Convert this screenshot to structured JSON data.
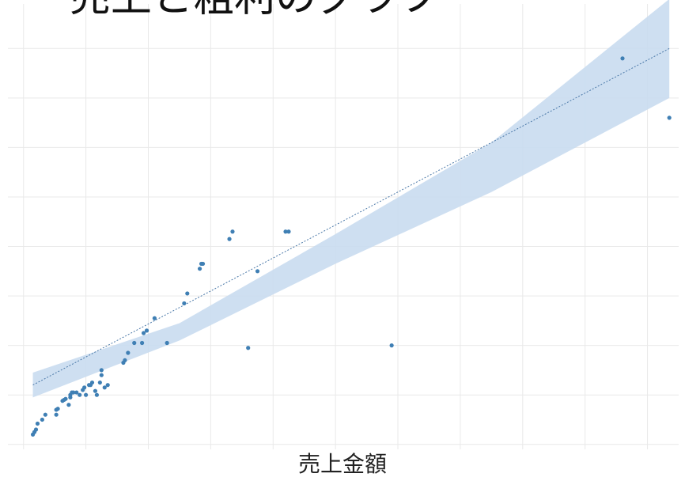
{
  "chart_data": {
    "type": "scatter",
    "title": "売上と粗利のグラフ",
    "xlabel": "売上金額",
    "ylabel": "",
    "grid": true,
    "regression": {
      "line_style": "dotted",
      "band_color": "#c9dcef",
      "line_color": "#4a78a8"
    },
    "colors": {
      "point": "#3f7fb4",
      "grid": "#e9e9e9"
    },
    "points": [
      [
        0.3,
        0.2
      ],
      [
        0.35,
        0.25
      ],
      [
        0.4,
        0.3
      ],
      [
        0.45,
        0.42
      ],
      [
        0.6,
        0.5
      ],
      [
        0.7,
        0.6
      ],
      [
        1.05,
        0.6
      ],
      [
        1.05,
        0.7
      ],
      [
        1.1,
        0.72
      ],
      [
        1.25,
        0.88
      ],
      [
        1.3,
        0.9
      ],
      [
        1.35,
        0.92
      ],
      [
        1.45,
        0.8
      ],
      [
        1.5,
        0.95
      ],
      [
        1.5,
        1.0
      ],
      [
        1.55,
        1.05
      ],
      [
        1.6,
        1.05
      ],
      [
        1.7,
        1.05
      ],
      [
        1.8,
        1.0
      ],
      [
        1.9,
        1.1
      ],
      [
        1.95,
        1.15
      ],
      [
        2.0,
        1.0
      ],
      [
        2.1,
        1.2
      ],
      [
        2.15,
        1.2
      ],
      [
        2.2,
        1.25
      ],
      [
        2.3,
        1.08
      ],
      [
        2.35,
        1.0
      ],
      [
        2.45,
        1.25
      ],
      [
        2.5,
        1.4
      ],
      [
        2.5,
        1.5
      ],
      [
        2.6,
        1.15
      ],
      [
        2.7,
        1.2
      ],
      [
        3.2,
        1.65
      ],
      [
        3.25,
        1.7
      ],
      [
        3.35,
        1.85
      ],
      [
        3.55,
        2.05
      ],
      [
        3.8,
        2.05
      ],
      [
        3.85,
        2.25
      ],
      [
        3.95,
        2.3
      ],
      [
        4.2,
        2.55
      ],
      [
        4.6,
        2.05
      ],
      [
        5.15,
        2.85
      ],
      [
        5.25,
        3.05
      ],
      [
        5.65,
        3.55
      ],
      [
        5.75,
        3.65
      ],
      [
        5.7,
        3.65
      ],
      [
        6.6,
        4.15
      ],
      [
        6.7,
        4.3
      ],
      [
        7.2,
        1.95
      ],
      [
        7.5,
        3.5
      ],
      [
        8.4,
        4.3
      ],
      [
        8.5,
        4.3
      ],
      [
        11.8,
        2.0
      ],
      [
        19.2,
        7.8
      ],
      [
        20.7,
        6.6
      ]
    ],
    "fit": {
      "x": [
        0.3,
        20.7
      ],
      "y": [
        1.2,
        8.0
      ]
    },
    "ci": {
      "x": [
        0.3,
        5,
        10,
        15,
        20.7
      ],
      "lower": [
        0.95,
        2.1,
        3.65,
        5.1,
        7.0
      ],
      "upper": [
        1.45,
        2.45,
        4.25,
        6.1,
        9.0
      ]
    },
    "xlim": [
      -0.5,
      21.0
    ],
    "ylim": [
      -0.1,
      8.9
    ],
    "x_gridlines": [
      0,
      2,
      4,
      6,
      8,
      10,
      12,
      14,
      16,
      18,
      20
    ],
    "y_gridlines": [
      0,
      1,
      2,
      3,
      4,
      5,
      6,
      7,
      8
    ]
  }
}
